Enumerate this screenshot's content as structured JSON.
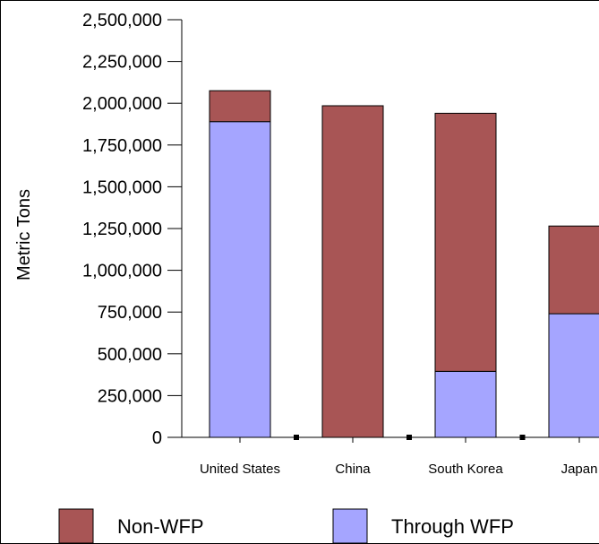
{
  "chart_data": {
    "type": "bar",
    "stacked": true,
    "ylabel": "Metric Tons",
    "xlabel": "",
    "ylim": [
      0,
      2500000
    ],
    "yticks": [
      0,
      250000,
      500000,
      750000,
      1000000,
      1250000,
      1500000,
      1750000,
      2000000,
      2250000,
      2500000
    ],
    "ytick_labels": [
      "0",
      "250,000",
      "500,000",
      "750,000",
      "1,000,000",
      "1,250,000",
      "1,500,000",
      "1,750,000",
      "2,000,000",
      "2,250,000",
      "2,500,000"
    ],
    "categories": [
      "United States",
      "China",
      "South Korea",
      "Japan"
    ],
    "category_labels": [
      "United States",
      "China",
      "South Korea",
      "Japan"
    ],
    "series": [
      {
        "name": "Through WFP",
        "color": "#a5a5ff",
        "values": [
          1890000,
          0,
          395000,
          740000
        ]
      },
      {
        "name": "Non-WFP",
        "color": "#a85555",
        "values": [
          185000,
          1985000,
          1545000,
          525000
        ]
      }
    ],
    "grid": false,
    "legend_position": "bottom"
  },
  "legend": [
    {
      "label": "Non-WFP",
      "color": "#a85555"
    },
    {
      "label": "Through WFP",
      "color": "#a5a5ff"
    }
  ]
}
